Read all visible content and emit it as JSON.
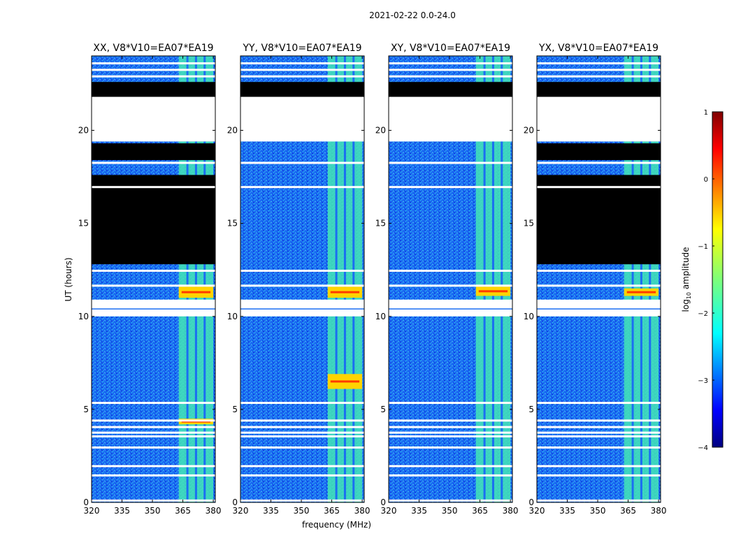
{
  "suptitle": "2021-02-22 0.0-24.0",
  "chart_data": {
    "type": "heatmap",
    "xlabel": "frequency (MHz)",
    "ylabel": "UT (hours)",
    "xlim": [
      320,
      381
    ],
    "ylim": [
      0,
      24
    ],
    "xticks": [
      320,
      335,
      350,
      365,
      380
    ],
    "yticks": [
      0,
      5,
      10,
      15,
      20
    ],
    "signal_band_mhz": [
      363,
      380
    ],
    "panels": [
      {
        "title": "XX, V8*V10=EA07*EA19",
        "flagged_blocks": [
          [
            12.8,
            17.6
          ],
          [
            18.4,
            19.3
          ],
          [
            21.7,
            22.6
          ]
        ],
        "strong_band_rows": [
          [
            4.2,
            4.5
          ],
          [
            11.0,
            11.6
          ]
        ]
      },
      {
        "title": "YY, V8*V10=EA07*EA19",
        "flagged_blocks": [
          [
            21.7,
            22.6
          ]
        ],
        "strong_band_rows": [
          [
            6.1,
            6.9
          ],
          [
            11.0,
            11.6
          ]
        ]
      },
      {
        "title": "XY, V8*V10=EA07*EA19",
        "flagged_blocks": [
          [
            21.7,
            22.6
          ]
        ],
        "strong_band_rows": [
          [
            11.1,
            11.6
          ]
        ]
      },
      {
        "title": "YX, V8*V10=EA07*EA19",
        "flagged_blocks": [
          [
            12.8,
            17.6
          ],
          [
            18.4,
            19.3
          ],
          [
            21.7,
            22.6
          ]
        ],
        "strong_band_rows": [
          [
            11.1,
            11.5
          ]
        ]
      }
    ],
    "white_gaps_hours": [
      0.1,
      1.45,
      1.95,
      2.95,
      3.55,
      3.75,
      4.05,
      4.4,
      5.35,
      10.2,
      10.45,
      10.7,
      11.65,
      12.45,
      16.95,
      18.25,
      19.5,
      21.0,
      22.9,
      23.25,
      23.6
    ],
    "colorbar": {
      "label": "log10 amplitude",
      "label_main": "log",
      "label_sub": "10",
      "label_rest": " amplitude",
      "min": -4,
      "max": 1,
      "ticks": [
        "1",
        "0",
        "−1",
        "−2",
        "−3",
        "−4"
      ],
      "tick_values": [
        1,
        0,
        -1,
        -2,
        -3,
        -4
      ]
    }
  }
}
